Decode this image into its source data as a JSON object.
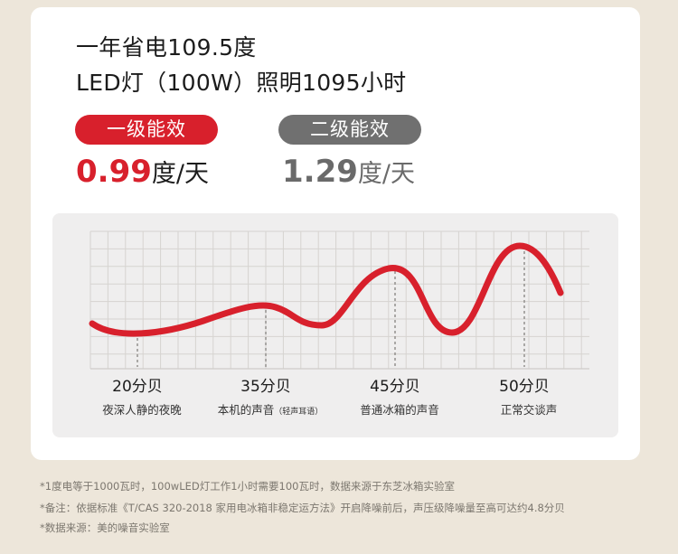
{
  "headline": {
    "line1": "一年省电109.5度",
    "line2": "LED灯（100W）照明1095小时"
  },
  "comparison": [
    {
      "badge": "一级能效",
      "value": "0.99",
      "unit": "度/天",
      "color": "#d8202c"
    },
    {
      "badge": "二级能效",
      "value": "1.29",
      "unit": "度/天",
      "color": "#707070"
    }
  ],
  "chart_data": {
    "type": "line",
    "series_color": "#d8202c",
    "grid": true,
    "markers": [
      {
        "label": "20分贝",
        "desc": "夜深人静的夜晚",
        "desc_small": ""
      },
      {
        "label": "35分贝",
        "desc": "本机的声音",
        "desc_small": "（轻声耳语）"
      },
      {
        "label": "45分贝",
        "desc": "普通冰箱的声音",
        "desc_small": ""
      },
      {
        "label": "50分贝",
        "desc": "正常交谈声",
        "desc_small": ""
      }
    ]
  },
  "footnotes": [
    "*1度电等于1000瓦时，100wLED灯工作1小时需要100瓦时，数据来源于东芝冰箱实验室",
    "*备注：依据标准《T/CAS 320-2018 家用电冰箱非稳定运方法》开启降噪前后，声压级降噪量至高可达约4.8分贝",
    "*数据来源：美的噪音实验室"
  ]
}
